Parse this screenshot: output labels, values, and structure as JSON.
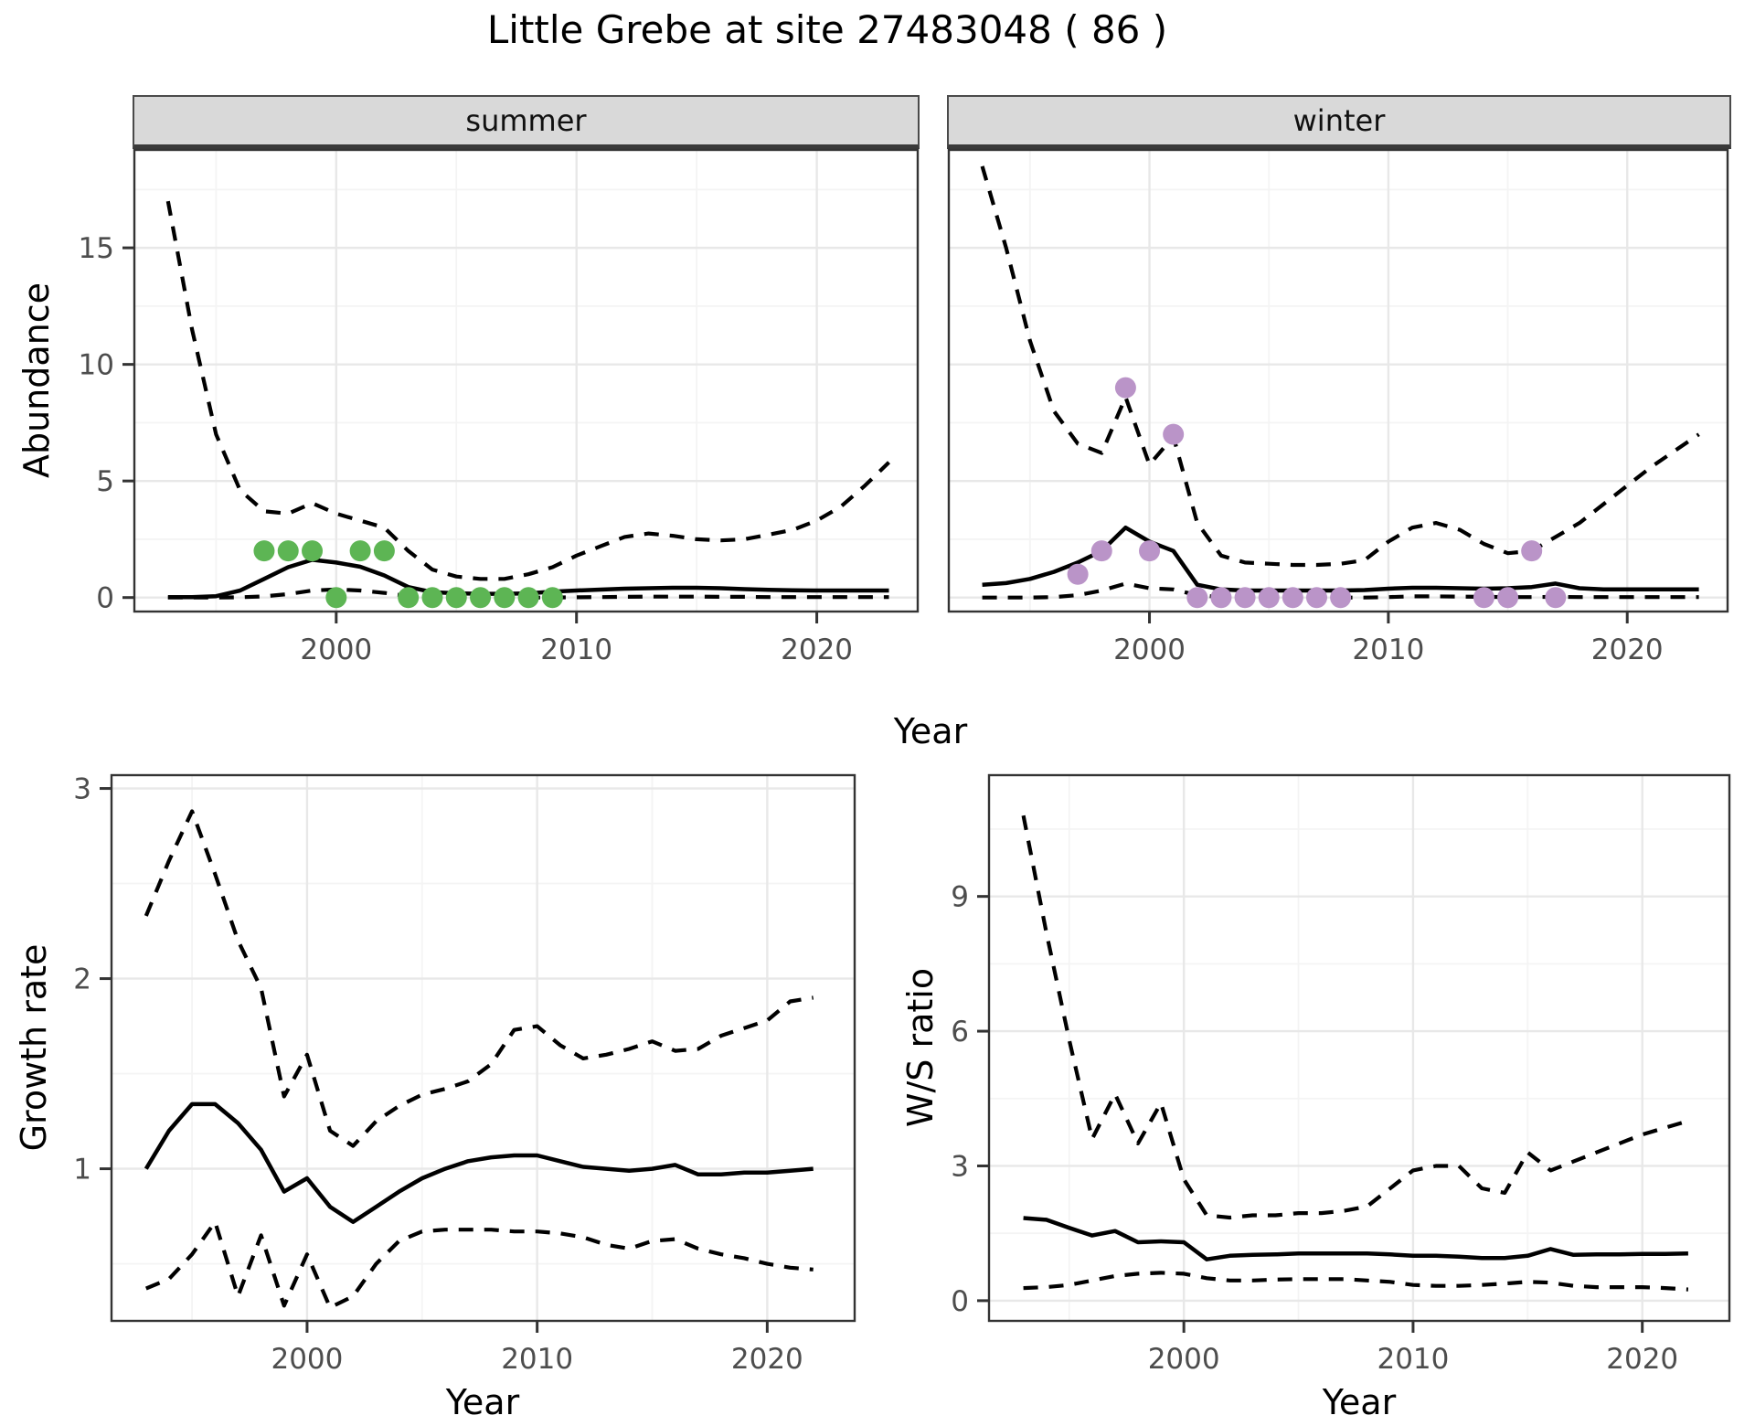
{
  "title": "Little Grebe at site 27483048 ( 86 )",
  "colors": {
    "summer_points": "#5db554",
    "winter_points": "#ba94c8",
    "line": "#000000",
    "strip_bg": "#d9d9d9",
    "axis_text": "#4d4d4d",
    "grid_major": "#e8e8e8",
    "grid_minor": "#f4f4f4",
    "panel_border": "#333333"
  },
  "chart_data": [
    {
      "type": "line",
      "panel": "abundance-summer",
      "facet_label": "summer",
      "ylabel": "Abundance",
      "xlabel": "Year",
      "ylim": [
        -0.6,
        19.2
      ],
      "yticks": [
        0,
        5,
        10,
        15
      ],
      "yminor": [
        2.5,
        7.5,
        12.5,
        17.5
      ],
      "xlim": [
        1991.6,
        2024.2
      ],
      "xticks": [
        2000,
        2010,
        2020
      ],
      "xminor": [
        1995,
        2005,
        2015
      ],
      "x": [
        1993,
        1994,
        1995,
        1996,
        1997,
        1998,
        1999,
        2000,
        2001,
        2002,
        2003,
        2004,
        2005,
        2006,
        2007,
        2008,
        2009,
        2010,
        2011,
        2012,
        2013,
        2014,
        2015,
        2016,
        2017,
        2018,
        2019,
        2020,
        2021,
        2022,
        2023
      ],
      "series": [
        {
          "name": "fit",
          "style": "solid",
          "values": [
            0.02,
            0.02,
            0.06,
            0.3,
            0.8,
            1.3,
            1.62,
            1.5,
            1.32,
            0.95,
            0.45,
            0.23,
            0.18,
            0.16,
            0.16,
            0.18,
            0.25,
            0.3,
            0.34,
            0.38,
            0.4,
            0.42,
            0.42,
            0.4,
            0.36,
            0.33,
            0.31,
            0.3,
            0.3,
            0.3,
            0.3
          ]
        },
        {
          "name": "upper_ci",
          "style": "dashed",
          "values": [
            17.0,
            11.5,
            7.0,
            4.6,
            3.7,
            3.6,
            4.05,
            3.6,
            3.3,
            3.0,
            2.0,
            1.2,
            0.9,
            0.8,
            0.8,
            1.0,
            1.3,
            1.8,
            2.2,
            2.6,
            2.75,
            2.65,
            2.5,
            2.45,
            2.5,
            2.7,
            2.9,
            3.3,
            3.9,
            4.8,
            5.8
          ]
        },
        {
          "name": "lower_ci",
          "style": "dashed",
          "values": [
            0,
            0,
            0,
            0.01,
            0.05,
            0.15,
            0.3,
            0.35,
            0.3,
            0.2,
            0.06,
            0.01,
            0,
            0,
            0,
            0,
            0,
            0.01,
            0.02,
            0.03,
            0.04,
            0.04,
            0.04,
            0.03,
            0.03,
            0.02,
            0.02,
            0.02,
            0.02,
            0.02,
            0.02
          ]
        }
      ],
      "points": {
        "name": "summer-observations",
        "color": "#5db554",
        "x": [
          1997,
          1998,
          1999,
          2000,
          2001,
          2002,
          2003,
          2004,
          2005,
          2006,
          2007,
          2008,
          2009
        ],
        "y": [
          2,
          2,
          2,
          0,
          2,
          2,
          0,
          0,
          0,
          0,
          0,
          0,
          0
        ]
      }
    },
    {
      "type": "line",
      "panel": "abundance-winter",
      "facet_label": "winter",
      "ylabel": "Abundance",
      "xlabel": "Year",
      "ylim": [
        -0.6,
        19.2
      ],
      "yticks": [
        0,
        5,
        10,
        15
      ],
      "yminor": [
        2.5,
        7.5,
        12.5,
        17.5
      ],
      "xlim": [
        1991.6,
        2024.2
      ],
      "xticks": [
        2000,
        2010,
        2020
      ],
      "xminor": [
        1995,
        2005,
        2015
      ],
      "x": [
        1993,
        1994,
        1995,
        1996,
        1997,
        1998,
        1999,
        2000,
        2001,
        2002,
        2003,
        2004,
        2005,
        2006,
        2007,
        2008,
        2009,
        2010,
        2011,
        2012,
        2013,
        2014,
        2015,
        2016,
        2017,
        2018,
        2019,
        2020,
        2021,
        2022,
        2023
      ],
      "series": [
        {
          "name": "fit",
          "style": "solid",
          "values": [
            0.55,
            0.62,
            0.8,
            1.1,
            1.5,
            2.0,
            3.0,
            2.4,
            2.0,
            0.55,
            0.35,
            0.3,
            0.3,
            0.3,
            0.3,
            0.3,
            0.32,
            0.38,
            0.42,
            0.42,
            0.4,
            0.38,
            0.4,
            0.45,
            0.6,
            0.4,
            0.35,
            0.35,
            0.35,
            0.35,
            0.35
          ]
        },
        {
          "name": "upper_ci",
          "style": "dashed",
          "values": [
            18.5,
            15.0,
            11.0,
            8.0,
            6.6,
            6.2,
            8.6,
            5.7,
            6.9,
            3.2,
            1.8,
            1.5,
            1.45,
            1.4,
            1.4,
            1.45,
            1.6,
            2.4,
            3.0,
            3.2,
            2.9,
            2.3,
            1.9,
            2.0,
            2.6,
            3.2,
            4.0,
            4.8,
            5.6,
            6.3,
            7.0
          ]
        },
        {
          "name": "lower_ci",
          "style": "dashed",
          "values": [
            0,
            0,
            0,
            0.02,
            0.1,
            0.3,
            0.6,
            0.4,
            0.35,
            0.1,
            0.02,
            0,
            0,
            0,
            0,
            0,
            0,
            0.02,
            0.05,
            0.05,
            0.04,
            0.03,
            0.02,
            0.02,
            0.03,
            0.02,
            0.02,
            0.02,
            0.02,
            0.02,
            0.02
          ]
        }
      ],
      "points": {
        "name": "winter-observations",
        "color": "#ba94c8",
        "x": [
          1997,
          1998,
          1999,
          2000,
          2001,
          2002,
          2003,
          2004,
          2005,
          2006,
          2007,
          2008,
          2014,
          2015,
          2016,
          2017
        ],
        "y": [
          1,
          2,
          9,
          2,
          7,
          0,
          0,
          0,
          0,
          0,
          0,
          0,
          0,
          0,
          2,
          0
        ]
      }
    },
    {
      "type": "line",
      "panel": "growth-rate",
      "facet_label": "",
      "ylabel": "Growth rate",
      "xlabel": "Year",
      "ylim": [
        0.2,
        3.07
      ],
      "yticks": [
        1,
        2,
        3
      ],
      "yminor": [
        0.5,
        1.5,
        2.5
      ],
      "xlim": [
        1991.5,
        2023.8
      ],
      "xticks": [
        2000,
        2010,
        2020
      ],
      "xminor": [
        1995,
        2005,
        2015
      ],
      "x": [
        1993,
        1994,
        1995,
        1996,
        1997,
        1998,
        1999,
        2000,
        2001,
        2002,
        2003,
        2004,
        2005,
        2006,
        2007,
        2008,
        2009,
        2010,
        2011,
        2012,
        2013,
        2014,
        2015,
        2016,
        2017,
        2018,
        2019,
        2020,
        2021,
        2022
      ],
      "series": [
        {
          "name": "fit",
          "style": "solid",
          "values": [
            1.0,
            1.2,
            1.34,
            1.34,
            1.24,
            1.1,
            0.88,
            0.95,
            0.8,
            0.72,
            0.8,
            0.88,
            0.95,
            1.0,
            1.04,
            1.06,
            1.07,
            1.07,
            1.04,
            1.01,
            1.0,
            0.99,
            1.0,
            1.02,
            0.97,
            0.97,
            0.98,
            0.98,
            0.99,
            1.0
          ]
        },
        {
          "name": "upper_ci",
          "style": "dashed",
          "values": [
            2.33,
            2.62,
            2.88,
            2.55,
            2.2,
            1.95,
            1.38,
            1.6,
            1.2,
            1.12,
            1.25,
            1.33,
            1.39,
            1.42,
            1.46,
            1.55,
            1.73,
            1.75,
            1.65,
            1.58,
            1.6,
            1.63,
            1.67,
            1.62,
            1.63,
            1.7,
            1.74,
            1.78,
            1.88,
            1.9
          ]
        },
        {
          "name": "lower_ci",
          "style": "dashed",
          "values": [
            0.37,
            0.42,
            0.55,
            0.72,
            0.33,
            0.65,
            0.28,
            0.55,
            0.27,
            0.33,
            0.5,
            0.62,
            0.67,
            0.68,
            0.68,
            0.68,
            0.67,
            0.67,
            0.66,
            0.64,
            0.6,
            0.58,
            0.62,
            0.63,
            0.58,
            0.55,
            0.53,
            0.5,
            0.48,
            0.47
          ]
        }
      ],
      "points": null
    },
    {
      "type": "line",
      "panel": "ws-ratio",
      "facet_label": "",
      "ylabel": "W/S ratio",
      "xlabel": "Year",
      "ylim": [
        -0.45,
        11.7
      ],
      "yticks": [
        0,
        3,
        6,
        9
      ],
      "yminor": [
        1.5,
        4.5,
        7.5,
        10.5
      ],
      "xlim": [
        1991.5,
        2023.8
      ],
      "xticks": [
        2000,
        2010,
        2020
      ],
      "xminor": [
        1995,
        2005,
        2015
      ],
      "x": [
        1993,
        1994,
        1995,
        1996,
        1997,
        1998,
        1999,
        2000,
        2001,
        2002,
        2003,
        2004,
        2005,
        2006,
        2007,
        2008,
        2009,
        2010,
        2011,
        2012,
        2013,
        2014,
        2015,
        2016,
        2017,
        2018,
        2019,
        2020,
        2021,
        2022
      ],
      "series": [
        {
          "name": "fit",
          "style": "solid",
          "values": [
            1.84,
            1.8,
            1.62,
            1.45,
            1.55,
            1.3,
            1.32,
            1.3,
            0.92,
            1.0,
            1.02,
            1.03,
            1.05,
            1.05,
            1.05,
            1.05,
            1.03,
            1.0,
            1.0,
            0.98,
            0.95,
            0.95,
            1.0,
            1.15,
            1.02,
            1.03,
            1.03,
            1.04,
            1.04,
            1.05
          ]
        },
        {
          "name": "upper_ci",
          "style": "dashed",
          "values": [
            10.8,
            8.2,
            5.8,
            3.6,
            4.6,
            3.5,
            4.4,
            2.7,
            1.9,
            1.85,
            1.9,
            1.9,
            1.95,
            1.95,
            2.0,
            2.1,
            2.5,
            2.9,
            3.0,
            3.0,
            2.5,
            2.4,
            3.3,
            2.9,
            3.1,
            3.3,
            3.5,
            3.7,
            3.85,
            4.0
          ]
        },
        {
          "name": "lower_ci",
          "style": "dashed",
          "values": [
            0.28,
            0.3,
            0.35,
            0.45,
            0.55,
            0.6,
            0.62,
            0.6,
            0.5,
            0.45,
            0.45,
            0.47,
            0.48,
            0.48,
            0.48,
            0.45,
            0.42,
            0.35,
            0.33,
            0.33,
            0.35,
            0.38,
            0.42,
            0.4,
            0.33,
            0.3,
            0.3,
            0.3,
            0.28,
            0.25
          ]
        }
      ],
      "points": null
    }
  ]
}
